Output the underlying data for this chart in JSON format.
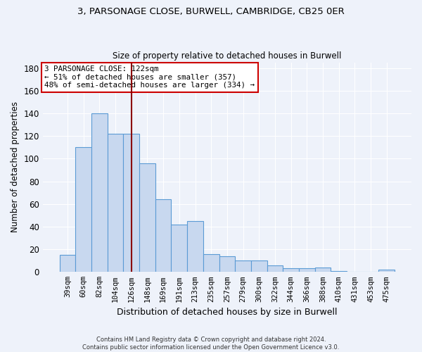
{
  "title_line1": "3, PARSONAGE CLOSE, BURWELL, CAMBRIDGE, CB25 0ER",
  "title_line2": "Size of property relative to detached houses in Burwell",
  "xlabel": "Distribution of detached houses by size in Burwell",
  "ylabel": "Number of detached properties",
  "categories": [
    "39sqm",
    "60sqm",
    "82sqm",
    "104sqm",
    "126sqm",
    "148sqm",
    "169sqm",
    "191sqm",
    "213sqm",
    "235sqm",
    "257sqm",
    "279sqm",
    "300sqm",
    "322sqm",
    "344sqm",
    "366sqm",
    "388sqm",
    "410sqm",
    "431sqm",
    "453sqm",
    "475sqm"
  ],
  "values": [
    15,
    110,
    140,
    122,
    122,
    96,
    64,
    42,
    45,
    16,
    14,
    10,
    10,
    6,
    3,
    3,
    4,
    1,
    0,
    0,
    2
  ],
  "bar_color": "#c8d8ef",
  "bar_edge_color": "#5b9bd5",
  "vline_x": 4,
  "vline_color": "#8b0000",
  "annotation_line1": "3 PARSONAGE CLOSE: 122sqm",
  "annotation_line2": "← 51% of detached houses are smaller (357)",
  "annotation_line3": "48% of semi-detached houses are larger (334) →",
  "annotation_box_color": "white",
  "annotation_box_edge_color": "#cc0000",
  "ylim": [
    0,
    185
  ],
  "yticks": [
    0,
    20,
    40,
    60,
    80,
    100,
    120,
    140,
    160,
    180
  ],
  "background_color": "#eef2fa",
  "footer_line1": "Contains HM Land Registry data © Crown copyright and database right 2024.",
  "footer_line2": "Contains public sector information licensed under the Open Government Licence v3.0.",
  "grid_color": "#ffffff"
}
